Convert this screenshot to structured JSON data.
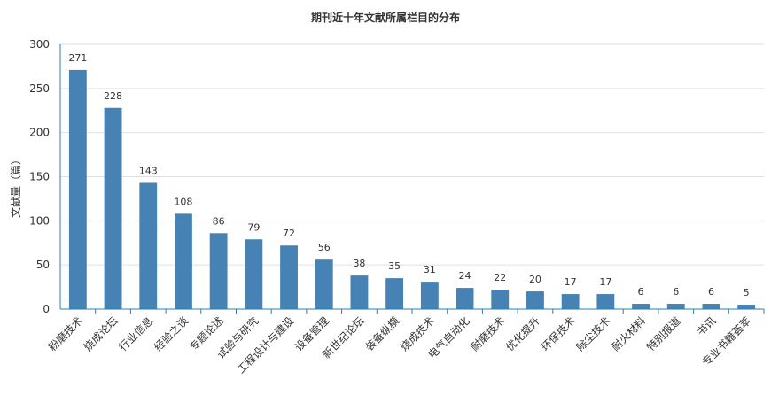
{
  "chart_data": {
    "type": "bar",
    "title": "期刊近十年文献所属栏目的分布",
    "ylabel": "文献量（篇）",
    "xlabel": "",
    "ylim": [
      0,
      300
    ],
    "yticks": [
      0,
      50,
      100,
      150,
      200,
      250,
      300
    ],
    "grid": true,
    "bar_color": "#4682b4",
    "axis_color": "#2a7fa8",
    "categories": [
      "粉磨技术",
      "烧成论坛",
      "行业信息",
      "经验之谈",
      "专题论述",
      "试验与研究",
      "工程设计与建设",
      "设备管理",
      "新世纪论坛",
      "装备纵横",
      "烧成技术",
      "电气自动化",
      "耐磨技术",
      "优化提升",
      "环保技术",
      "除尘技术",
      "耐火材料",
      "特别报道",
      "书讯",
      "专业书籍荟萃"
    ],
    "values": [
      271,
      228,
      143,
      108,
      86,
      79,
      72,
      56,
      38,
      35,
      31,
      24,
      22,
      20,
      17,
      17,
      6,
      6,
      6,
      5
    ]
  }
}
